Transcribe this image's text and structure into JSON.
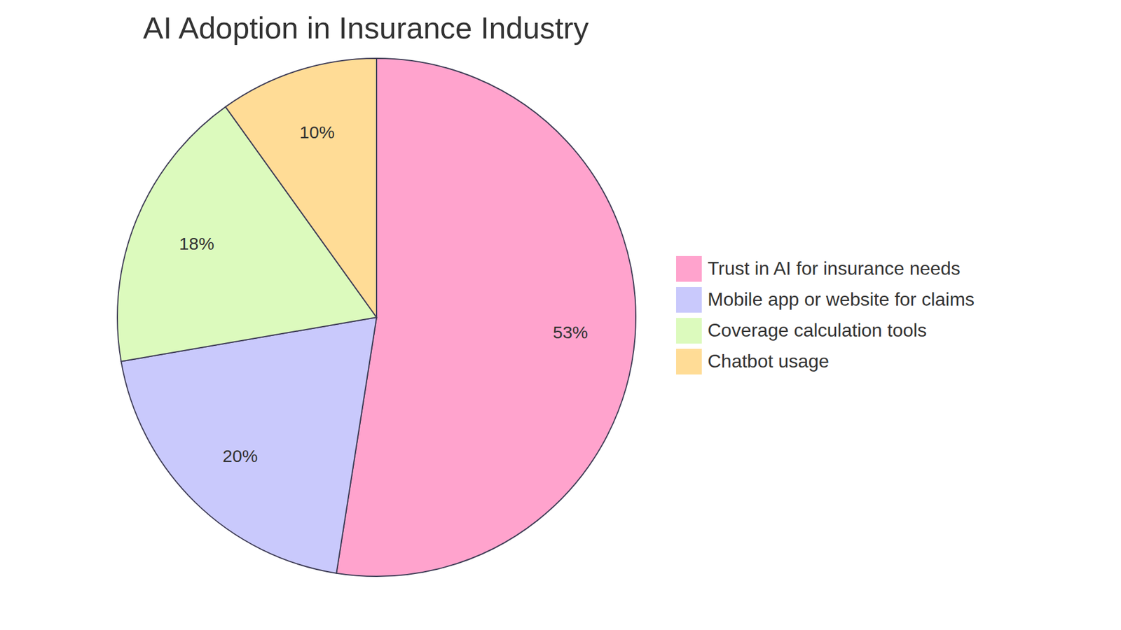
{
  "chart_data": {
    "type": "pie",
    "title": "AI Adoption in Insurance Industry",
    "categories": [
      "Trust in AI for insurance needs",
      "Mobile app or website for claims",
      "Coverage calculation tools",
      "Chatbot usage"
    ],
    "values": [
      53,
      20,
      18,
      10
    ],
    "value_labels": [
      "53%",
      "20%",
      "18%",
      "10%"
    ],
    "colors": [
      "#ffa3cd",
      "#c9c9fc",
      "#dcfabd",
      "#ffdc96"
    ],
    "data_labels": true,
    "legend": "right"
  }
}
